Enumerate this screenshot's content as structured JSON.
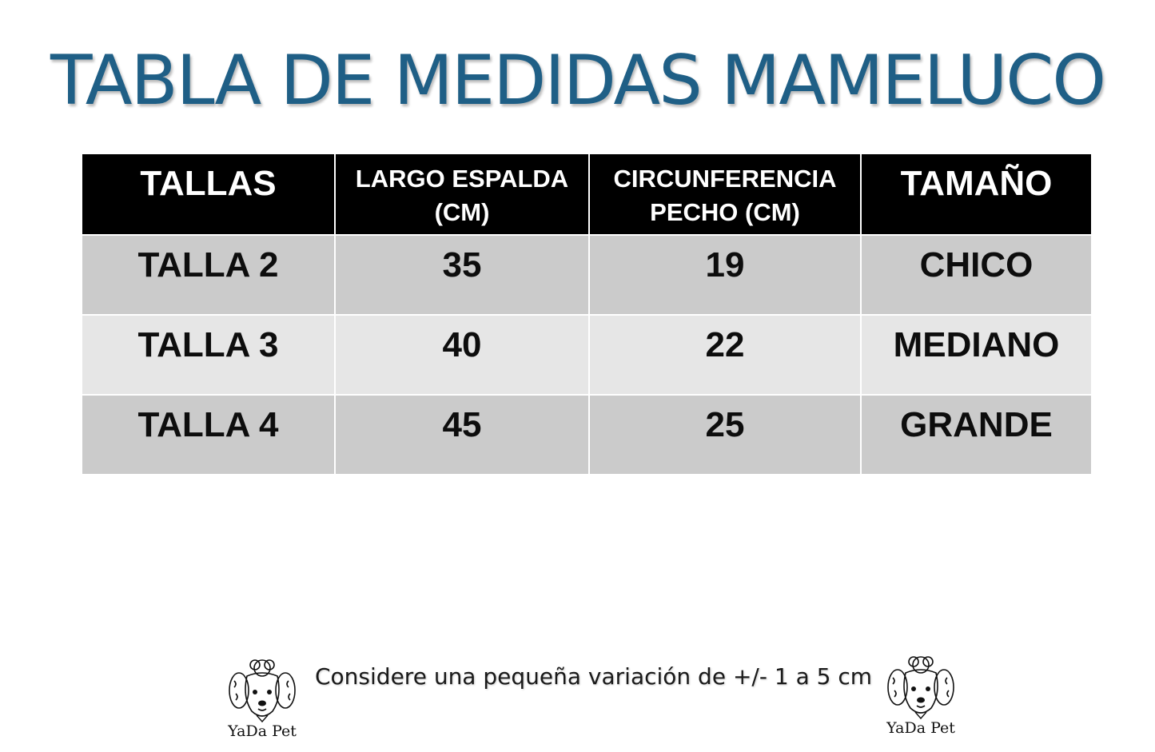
{
  "title": "TABLA DE MEDIDAS MAMELUCO",
  "table": {
    "headers": [
      "TALLAS",
      "LARGO ESPALDA (CM)",
      "CIRCUNFERENCIA PECHO (CM)",
      "TAMAÑO"
    ],
    "rows": [
      [
        "TALLA 2",
        "35",
        "19",
        "CHICO"
      ],
      [
        "TALLA 3",
        "40",
        "22",
        "MEDIANO"
      ],
      [
        "TALLA 4",
        "45",
        "25",
        "GRANDE"
      ]
    ]
  },
  "note": "Considere una pequeña variación de +/- 1 a 5 cm",
  "logos": [
    {
      "icon": "poodle-icon",
      "text": "YaDa Pet"
    },
    {
      "icon": "poodle-icon",
      "text": "YaDa Pet"
    }
  ],
  "colors": {
    "title": "#1f5f86",
    "header_bg": "#000000",
    "row_dark": "#cbcbcb",
    "row_light": "#e6e6e6"
  }
}
